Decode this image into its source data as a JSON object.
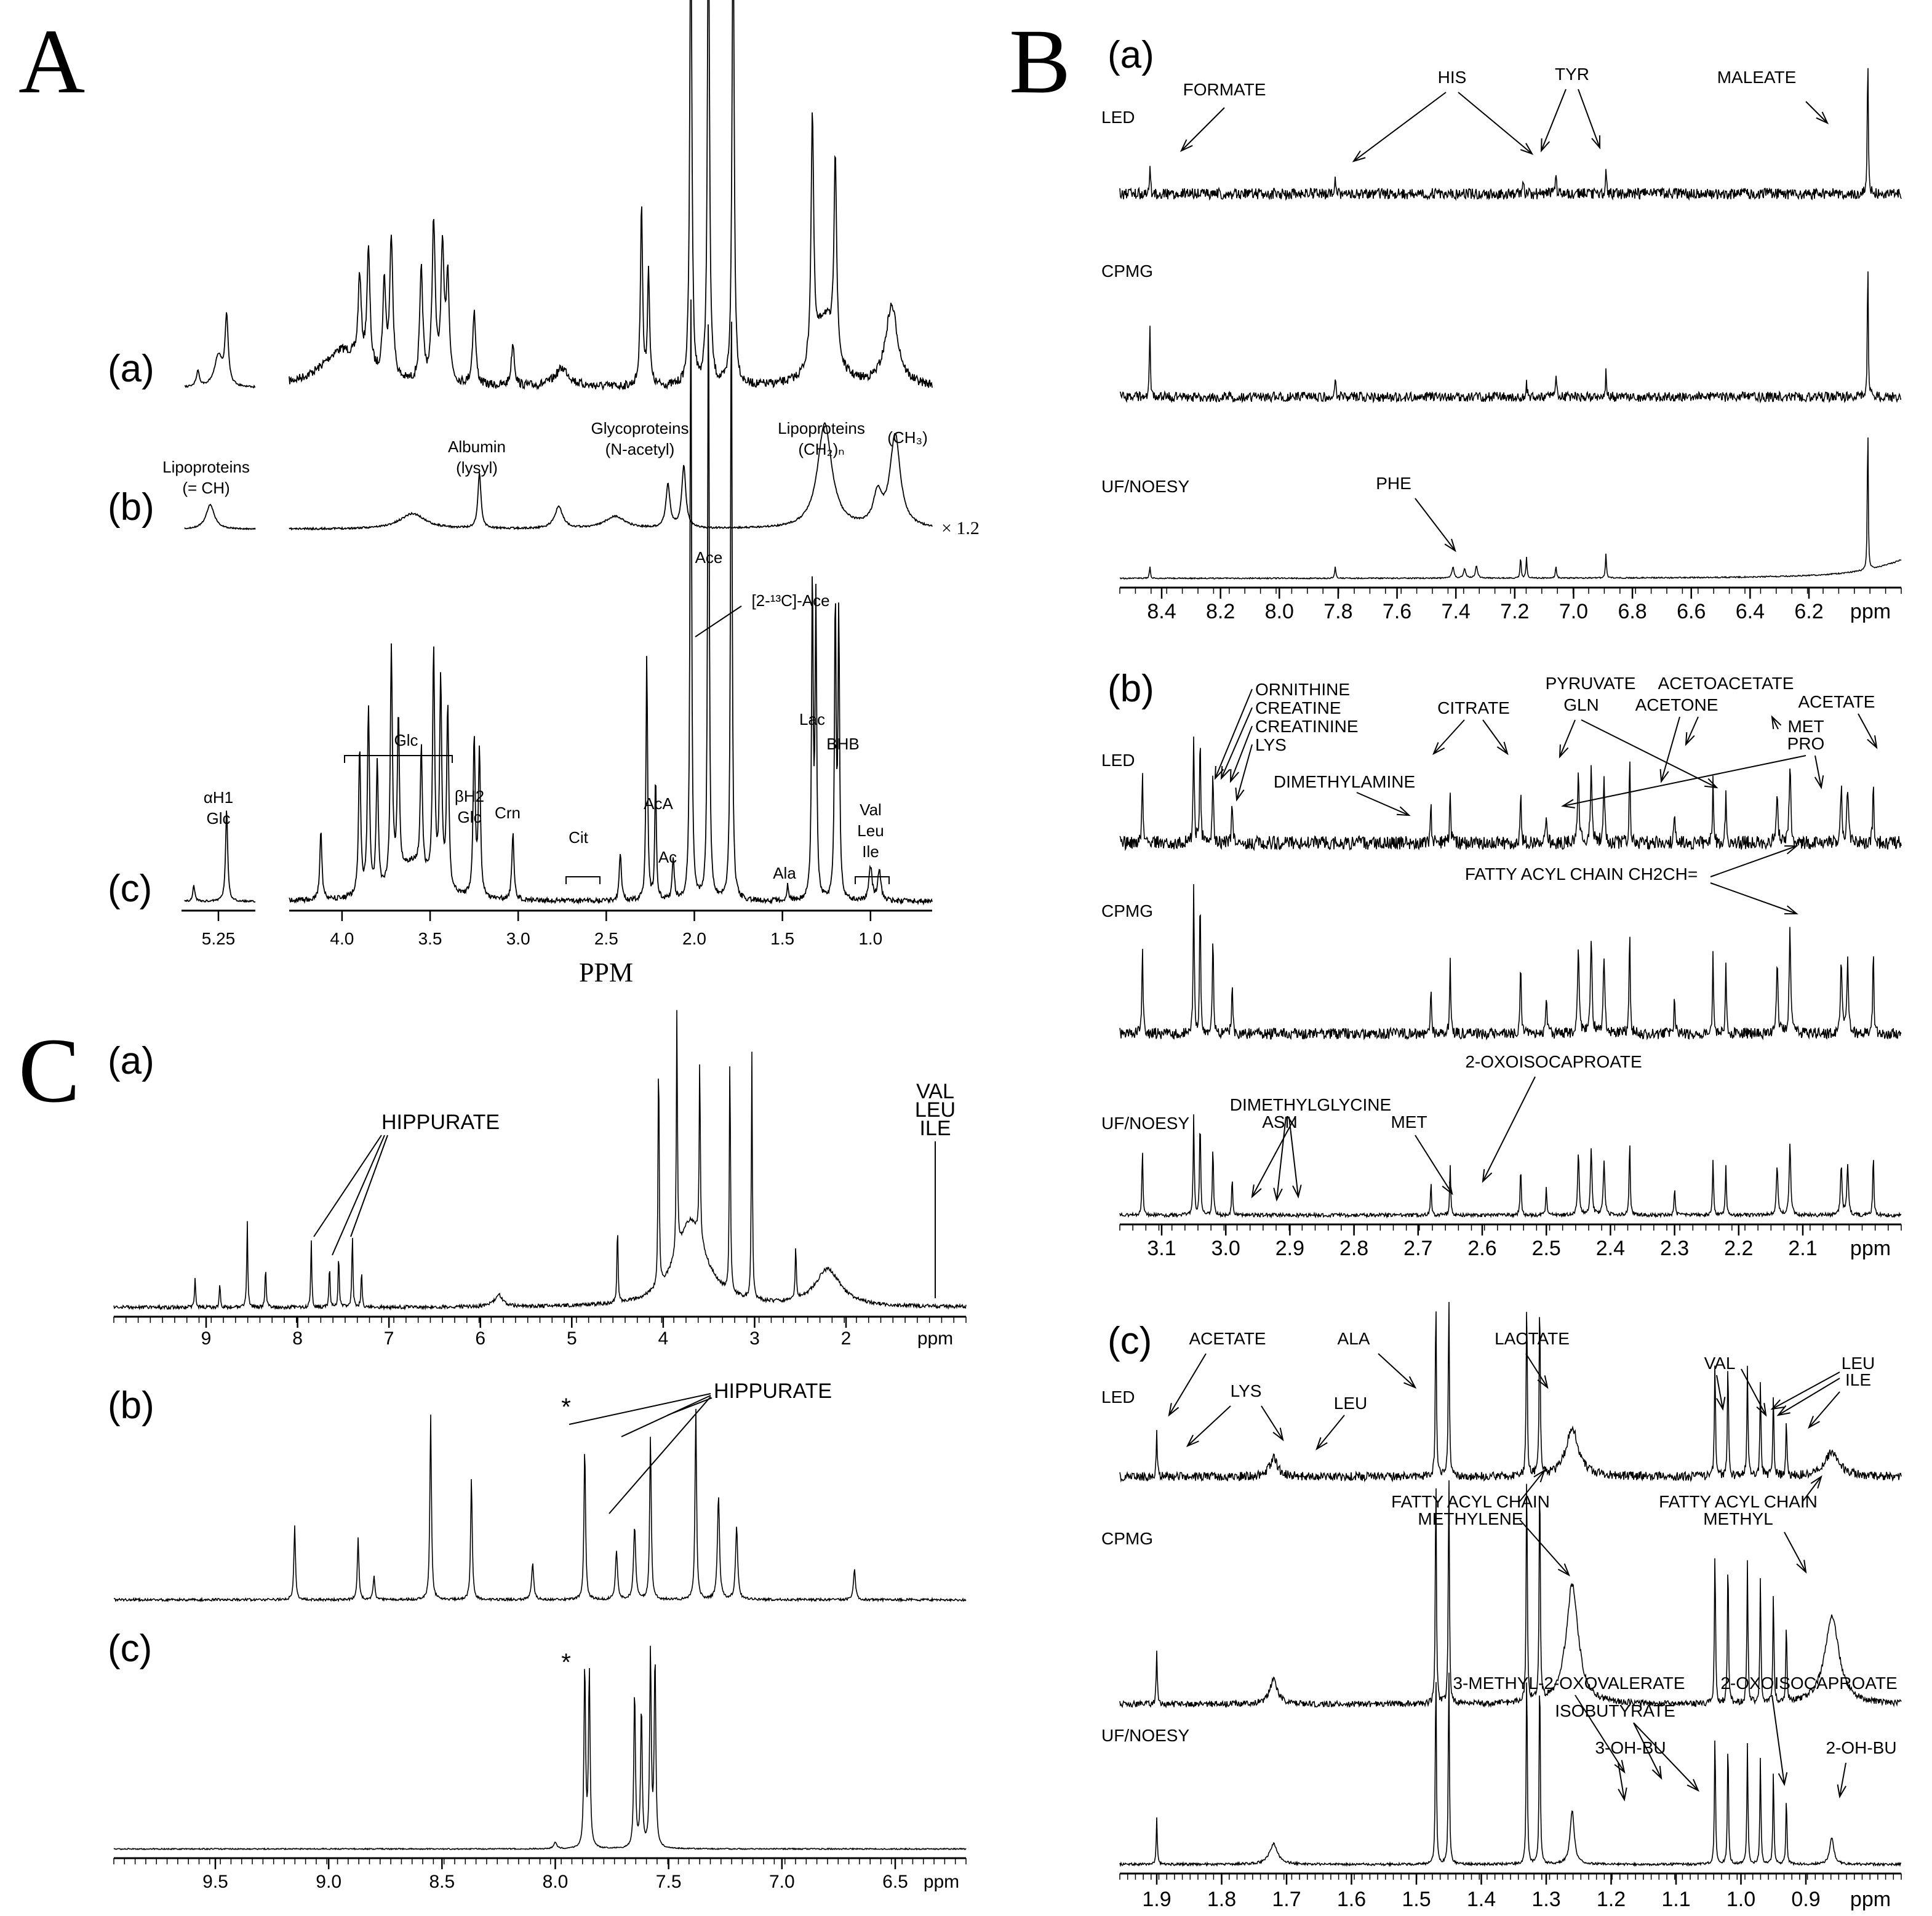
{
  "chart_data": [
    {
      "panel": "A",
      "type": "line",
      "xlabel": "PPM",
      "tick_labels": [
        "5.25",
        "4.0",
        "3.5",
        "3.0",
        "2.5",
        "2.0",
        "1.5",
        "1.0"
      ],
      "rows": [
        {
          "label": "(a)",
          "annotations": []
        },
        {
          "label": "(b)",
          "scale": "× 1.2",
          "annotations": [
            {
              "text": [
                "Lipoproteins",
                "(= CH)"
              ],
              "x": 5.27
            },
            {
              "text": [
                "Albumin",
                "(lysyl)"
              ],
              "x": 3.22
            },
            {
              "text": [
                "Glycoproteins",
                "(N-acetyl)"
              ],
              "x": 2.06
            },
            {
              "text": [
                "Lipoproteins",
                "(CH₂)ₙ"
              ],
              "x": 1.26
            },
            {
              "text": [
                "(CH₃)"
              ],
              "x": 0.86
            }
          ]
        },
        {
          "label": "(c)",
          "annotations": [
            {
              "text": [
                "αH1",
                "Glc"
              ],
              "x": 5.23
            },
            {
              "text": [
                "Glc"
              ],
              "x": 3.7
            },
            {
              "text": [
                "βH2",
                "Glc"
              ],
              "x": 3.25
            },
            {
              "text": [
                "Crn"
              ],
              "x": 3.04
            },
            {
              "text": [
                "Cit"
              ],
              "x": 2.6
            },
            {
              "text": [
                "AcA"
              ],
              "x": 2.27
            },
            {
              "text": [
                "Ac"
              ],
              "x": 2.12
            },
            {
              "text": [
                "Ace"
              ],
              "x": 1.92
            },
            {
              "text": [
                "[2-¹³C]-Ace"
              ],
              "x": 1.66
            },
            {
              "text": [
                "Ala"
              ],
              "x": 1.47
            },
            {
              "text": [
                "Lac"
              ],
              "x": 1.33
            },
            {
              "text": [
                "BHB"
              ],
              "x": 1.2
            },
            {
              "text": [
                "Val",
                "Leu",
                "Ile"
              ],
              "x": 0.98
            }
          ]
        }
      ]
    },
    {
      "panel": "B",
      "subpanels": [
        {
          "label": "(a)",
          "type": "line",
          "xlabel": "ppm",
          "ticks": [
            "8.4",
            "8.2",
            "8.0",
            "7.8",
            "7.6",
            "7.4",
            "7.2",
            "7.0",
            "6.8",
            "6.6",
            "6.4",
            "6.2",
            "ppm"
          ],
          "series": [
            {
              "name": "LED"
            },
            {
              "name": "CPMG"
            },
            {
              "name": "UF/NOESY"
            }
          ],
          "annotations": [
            "FORMATE",
            "HIS",
            "TYR",
            "MALEATE",
            "PHE"
          ]
        },
        {
          "label": "(b)",
          "type": "line",
          "xlabel": "ppm",
          "ticks": [
            "3.1",
            "3.0",
            "2.9",
            "2.8",
            "2.7",
            "2.6",
            "2.5",
            "2.4",
            "2.3",
            "2.2",
            "2.1",
            "ppm"
          ],
          "series": [
            {
              "name": "LED"
            },
            {
              "name": "CPMG"
            },
            {
              "name": "UF/NOESY"
            }
          ],
          "annotations": [
            "ORNITHINE",
            "CREATINE",
            "CREATININE",
            "LYS",
            "CITRATE",
            "PYRUVATE",
            "GLN",
            "ACETONE",
            "ACETOACETATE",
            "ACETATE",
            "MET",
            "PRO",
            "DIMETHYLAMINE",
            "FATTY ACYL CHAIN CH2CH=",
            "2-OXOISOCAPROATE",
            "DIMETHYLGLYCINE",
            "ASN",
            "MET"
          ]
        },
        {
          "label": "(c)",
          "type": "line",
          "xlabel": "ppm",
          "ticks": [
            "1.9",
            "1.8",
            "1.7",
            "1.6",
            "1.5",
            "1.4",
            "1.3",
            "1.2",
            "1.1",
            "1.0",
            "0.9",
            "ppm"
          ],
          "series": [
            {
              "name": "LED"
            },
            {
              "name": "CPMG"
            },
            {
              "name": "UF/NOESY"
            }
          ],
          "annotations": [
            "ACETATE",
            "ALA",
            "LACTATE",
            "VAL",
            "LEU",
            "ILE",
            "LYS",
            "LEU",
            "FATTY ACYL CHAIN",
            "METHYLENE",
            "FATTY ACYL CHAIN",
            "METHYL",
            "3-METHYL-2-OXOVALERATE",
            "2-OXOISOCAPROATE",
            "ISOBUTYRATE",
            "3-OH-BU",
            "2-OH-BU"
          ]
        }
      ]
    },
    {
      "panel": "C",
      "subpanels": [
        {
          "label": "(a)",
          "type": "line",
          "ticks": [
            "9",
            "8",
            "7",
            "6",
            "5",
            "4",
            "3",
            "2",
            "ppm"
          ],
          "annotations": [
            "HIPPURATE",
            "VAL",
            "LEU",
            "ILE"
          ]
        },
        {
          "label": "(b)",
          "type": "line",
          "annotations": [
            "*",
            "HIPPURATE"
          ]
        },
        {
          "label": "(c)",
          "type": "line",
          "ticks": [
            "9.5",
            "9.0",
            "8.5",
            "8.0",
            "7.5",
            "7.0",
            "6.5",
            "ppm"
          ],
          "annotations": [
            "*"
          ]
        }
      ]
    }
  ],
  "panel_letters": {
    "a": "A",
    "b": "B",
    "c": "C"
  }
}
